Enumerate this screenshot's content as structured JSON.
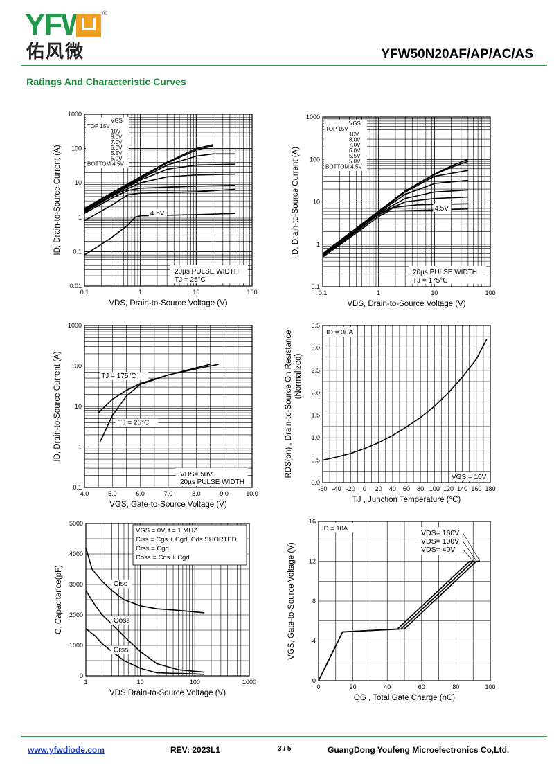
{
  "header": {
    "logo_latin": "YFW",
    "logo_chinese": "佑风微",
    "registered": "®",
    "model": "YFW50N20AF/AP/AC/AS",
    "section_title": "Ratings And Characteristic Curves"
  },
  "footer": {
    "website": "www.yfwdiode.com",
    "revision": "REV: 2023L1",
    "page": "3 / 5",
    "company": "GuangDong Youfeng Microelectronics Co,Ltd."
  },
  "colors": {
    "accent": "#2e9e4f",
    "logo_green": "#1f9a4a",
    "logo_orange": "#f2a01f",
    "link": "#1f3fbf"
  },
  "chart_data": [
    {
      "id": "c1",
      "type": "line",
      "xscale": "log",
      "yscale": "log",
      "xlim": [
        0.1,
        100
      ],
      "ylim": [
        0.01,
        1000
      ],
      "xticks": [
        "0.1",
        "1",
        "10",
        "100"
      ],
      "yticks": [
        "0.01",
        "0.1",
        "1",
        "10",
        "100",
        "1000"
      ],
      "xlabel": "VDS, Drain-to-Source Voltage (V)",
      "ylabel": "ID, Drain-to-Source Current (A)",
      "legend_lines": [
        "VGS",
        "TOP   15V",
        "10V",
        "8.0V",
        "7.0V",
        "6.0V",
        "5.5V",
        "5.0V",
        "BOTTOM 4.5V"
      ],
      "curve_label": "4.5V",
      "notes": [
        "20µs PULSE WIDTH",
        "TJ = 25°C"
      ],
      "series": [
        {
          "name": "15V",
          "x": [
            0.1,
            0.3,
            1,
            3,
            10,
            20
          ],
          "y": [
            1.8,
            5,
            15,
            40,
            100,
            130
          ]
        },
        {
          "name": "10V",
          "x": [
            0.1,
            0.3,
            1,
            3,
            10,
            20
          ],
          "y": [
            1.7,
            4.8,
            14,
            38,
            90,
            120
          ]
        },
        {
          "name": "8.0V",
          "x": [
            0.1,
            0.3,
            1,
            3,
            10,
            20,
            50
          ],
          "y": [
            1.6,
            4.5,
            13,
            33,
            60,
            70,
            70
          ]
        },
        {
          "name": "7.0V",
          "x": [
            0.1,
            0.3,
            1,
            3,
            10,
            50
          ],
          "y": [
            1.5,
            4.2,
            12,
            25,
            33,
            35
          ]
        },
        {
          "name": "6.0V",
          "x": [
            0.1,
            0.3,
            1,
            3,
            10,
            50
          ],
          "y": [
            1.4,
            4,
            10,
            15,
            17,
            18
          ]
        },
        {
          "name": "5.5V",
          "x": [
            0.1,
            0.3,
            0.6,
            1,
            3,
            10,
            50
          ],
          "y": [
            1.3,
            3.5,
            6,
            7,
            7.5,
            8,
            8.5
          ]
        },
        {
          "name": "5.0V",
          "x": [
            0.1,
            0.3,
            0.6,
            1,
            3,
            10,
            50
          ],
          "y": [
            0.8,
            2.2,
            4.5,
            5,
            5.2,
            5.5,
            6.5
          ]
        },
        {
          "name": "4.5V",
          "x": [
            0.1,
            0.3,
            0.6,
            0.8,
            1,
            10,
            50
          ],
          "y": [
            0.08,
            0.25,
            0.6,
            1.0,
            1.1,
            1.2,
            1.3
          ]
        }
      ]
    },
    {
      "id": "c2",
      "type": "line",
      "xscale": "log",
      "yscale": "log",
      "xlim": [
        0.1,
        100
      ],
      "ylim": [
        0.1,
        1000
      ],
      "xticks": [
        "0.1",
        "1",
        "10",
        "100"
      ],
      "yticks": [
        "0.1",
        "1",
        "10",
        "100",
        "1000"
      ],
      "xlabel": "VDS, Drain-to-Source Voltage (V)",
      "ylabel": "ID, Drain-to-Source Current (A)",
      "legend_lines": [
        "VGS",
        "TOP   15V",
        "10V",
        "8.0V",
        "7.0V",
        "6.0V",
        "5.5V",
        "5.0V",
        "BOTTOM 4.5V"
      ],
      "curve_label": "4.5V",
      "notes": [
        "20µs PULSE WIDTH",
        "TJ = 175°C"
      ],
      "series": [
        {
          "name": "15V",
          "x": [
            0.1,
            0.3,
            1,
            3,
            10,
            20,
            40
          ],
          "y": [
            0.6,
            1.8,
            6,
            18,
            45,
            70,
            100
          ]
        },
        {
          "name": "10V",
          "x": [
            0.1,
            0.3,
            1,
            3,
            10,
            20,
            40
          ],
          "y": [
            0.6,
            1.8,
            6,
            18,
            44,
            65,
            90
          ]
        },
        {
          "name": "8.0V",
          "x": [
            0.1,
            0.3,
            1,
            3,
            10,
            40
          ],
          "y": [
            0.58,
            1.7,
            5.8,
            17,
            40,
            55
          ]
        },
        {
          "name": "7.0V",
          "x": [
            0.1,
            0.3,
            1,
            3,
            10,
            40
          ],
          "y": [
            0.56,
            1.65,
            5.6,
            15,
            27,
            32
          ]
        },
        {
          "name": "6.0V",
          "x": [
            0.1,
            0.3,
            1,
            3,
            10,
            40
          ],
          "y": [
            0.55,
            1.6,
            5.4,
            12,
            17,
            19
          ]
        },
        {
          "name": "5.5V",
          "x": [
            0.1,
            0.3,
            1,
            3,
            10,
            40
          ],
          "y": [
            0.54,
            1.55,
            5.2,
            10,
            12,
            13
          ]
        },
        {
          "name": "5.0V",
          "x": [
            0.1,
            0.3,
            1,
            2,
            5,
            40
          ],
          "y": [
            0.52,
            1.5,
            5,
            7.5,
            8.5,
            9
          ]
        },
        {
          "name": "4.5V",
          "x": [
            0.1,
            0.3,
            1,
            1.5,
            5,
            40
          ],
          "y": [
            0.5,
            1.4,
            4.5,
            6,
            6.3,
            6.8
          ]
        }
      ]
    },
    {
      "id": "c3",
      "type": "line",
      "xscale": "linear",
      "yscale": "log",
      "xlim": [
        4.0,
        10.0
      ],
      "ylim": [
        0.1,
        1000
      ],
      "xticks": [
        "4.0",
        "5.0",
        "6.0",
        "7.0",
        "8.0",
        "9.0",
        "10.0"
      ],
      "yticks": [
        "0.1",
        "1",
        "10",
        "100",
        "1000"
      ],
      "xlabel": "VGS, Gate-to-Source Voltage (V)",
      "ylabel": "ID, Drain-to-Source Current (A)",
      "curve_labels": [
        "TJ = 175°C",
        "TJ = 25°C"
      ],
      "notes": [
        "VDS= 50V",
        "20µs PULSE WIDTH"
      ],
      "series": [
        {
          "name": "TJ = 175°C",
          "x": [
            4.5,
            5,
            5.5,
            6,
            7,
            8,
            8.8
          ],
          "y": [
            7,
            15,
            25,
            37,
            60,
            85,
            110
          ]
        },
        {
          "name": "TJ = 25°C",
          "x": [
            4.55,
            5,
            5.5,
            6,
            7,
            8,
            8.5
          ],
          "y": [
            1.3,
            6,
            18,
            35,
            60,
            90,
            110
          ]
        }
      ]
    },
    {
      "id": "c4",
      "type": "line",
      "xscale": "linear",
      "yscale": "linear",
      "xlim": [
        -60,
        180
      ],
      "ylim": [
        0,
        3.5
      ],
      "xticks": [
        "-60",
        "-40",
        "-20",
        "0",
        "20",
        "40",
        "60",
        "80",
        "100",
        "120",
        "140",
        "160",
        "180"
      ],
      "yticks": [
        "0.0",
        "0.5",
        "1.0",
        "1.5",
        "2.0",
        "2.5",
        "3.0",
        "3.5"
      ],
      "xlabel": "TJ , Junction Temperature (°C)",
      "ylabel": "RDS(on) , Drain-to-Source On Resistance",
      "ylabel2": "(Normalized)",
      "notes": [
        "ID = 30A",
        "VGS = 10V"
      ],
      "series": [
        {
          "name": "RDS(on)",
          "x": [
            -60,
            -40,
            -20,
            0,
            20,
            40,
            60,
            80,
            100,
            120,
            140,
            160,
            175
          ],
          "y": [
            0.5,
            0.57,
            0.65,
            0.76,
            0.89,
            1.05,
            1.24,
            1.45,
            1.7,
            2.0,
            2.35,
            2.75,
            3.2
          ]
        }
      ]
    },
    {
      "id": "c5",
      "type": "line",
      "xscale": "log",
      "yscale": "linear",
      "xlim": [
        1,
        1000
      ],
      "ylim": [
        0,
        5000
      ],
      "xticks": [
        "1",
        "10",
        "100",
        "1000"
      ],
      "yticks": [
        "0",
        "1000",
        "2000",
        "3000",
        "4000",
        "5000"
      ],
      "xlabel": "VDS Drain-to-Source Voltage (V)",
      "ylabel": "C, Capacitance(pF)",
      "legend_lines": [
        "VGS  = 0V,     f = 1 MHZ",
        "Ciss  = Cgs + Cgd, Cds  SHORTED",
        "Crss  = Cgd",
        "Coss  = Cds + Cgd"
      ],
      "series": [
        {
          "name": "Ciss",
          "x": [
            1,
            1.3,
            2,
            3,
            5,
            10,
            20,
            50,
            150
          ],
          "y": [
            4200,
            3500,
            3100,
            2800,
            2500,
            2300,
            2200,
            2150,
            2070
          ]
        },
        {
          "name": "Coss",
          "x": [
            1,
            1.5,
            2,
            3,
            5,
            10,
            20,
            50,
            150
          ],
          "y": [
            2800,
            2300,
            2000,
            1700,
            1300,
            800,
            400,
            200,
            120
          ]
        },
        {
          "name": "Crss",
          "x": [
            1,
            1.5,
            2,
            3,
            5,
            10,
            20,
            50,
            150
          ],
          "y": [
            1550,
            1300,
            1050,
            800,
            500,
            250,
            100,
            80,
            50
          ]
        }
      ]
    },
    {
      "id": "c6",
      "type": "line",
      "xscale": "linear",
      "yscale": "linear",
      "xlim": [
        0,
        100
      ],
      "ylim": [
        0,
        16
      ],
      "xticks": [
        "0",
        "20",
        "40",
        "60",
        "80",
        "100"
      ],
      "yticks": [
        "0",
        "4",
        "8",
        "12",
        "16"
      ],
      "xlabel": "QG , Total Gate Charge (nC)",
      "ylabel": "VGS, Gate-to-Source Voltage (V)",
      "notes": [
        "ID = 18A"
      ],
      "legend_lines": [
        "VDS= 160V",
        "VDS= 100V",
        "VDS= 40V"
      ],
      "series": [
        {
          "name": "VDS= 40V",
          "x": [
            0,
            14,
            46,
            88,
            89
          ],
          "y": [
            0,
            4.9,
            5.2,
            12,
            12
          ]
        },
        {
          "name": "VDS= 100V",
          "x": [
            0,
            14,
            48,
            90,
            91
          ],
          "y": [
            0,
            4.9,
            5.2,
            12,
            12
          ]
        },
        {
          "name": "VDS= 160V",
          "x": [
            0,
            14,
            50,
            92,
            94
          ],
          "y": [
            0,
            4.9,
            5.2,
            12,
            12
          ]
        }
      ]
    }
  ]
}
